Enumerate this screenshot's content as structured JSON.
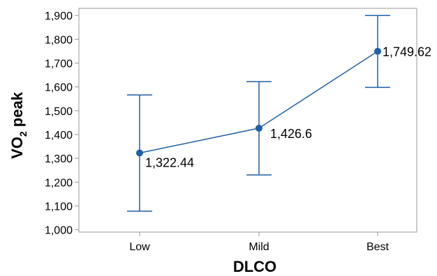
{
  "chart_data": {
    "type": "line",
    "categories": [
      "Low",
      "Mild",
      "Best"
    ],
    "series": [
      {
        "values": [
          1322.44,
          1426.6,
          1749.62
        ],
        "lower": [
          1078,
          1230,
          1598
        ],
        "upper": [
          1566,
          1622,
          1900
        ],
        "data_labels": [
          "1,322.44",
          "1,426.6",
          "1,749.62"
        ]
      }
    ],
    "xlabel": "DLCO",
    "ylabel_main": "VO",
    "ylabel_sub": "2",
    "ylabel_rest": " peak",
    "ylim": [
      990,
      1930
    ],
    "yticks": [
      1000,
      1100,
      1200,
      1300,
      1400,
      1500,
      1600,
      1700,
      1800,
      1900
    ],
    "ytick_labels": [
      "1,000",
      "1,100",
      "1,200",
      "1,300",
      "1,400",
      "1,500",
      "1,600",
      "1,700",
      "1,800",
      "1,900"
    ],
    "grid": false,
    "error_bars": true,
    "colors": {
      "series": "#1f5fa8",
      "axis": "#999999"
    }
  }
}
